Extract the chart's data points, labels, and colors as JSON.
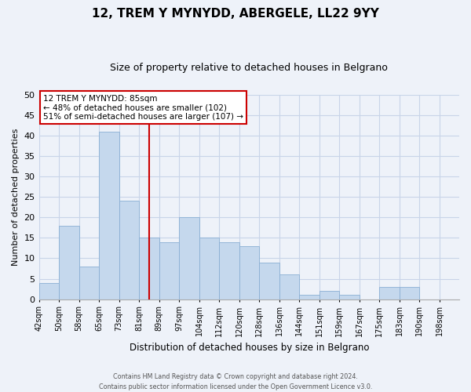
{
  "title": "12, TREM Y MYNYDD, ABERGELE, LL22 9YY",
  "subtitle": "Size of property relative to detached houses in Belgrano",
  "xlabel": "Distribution of detached houses by size in Belgrano",
  "ylabel": "Number of detached properties",
  "bin_labels": [
    "42sqm",
    "50sqm",
    "58sqm",
    "65sqm",
    "73sqm",
    "81sqm",
    "89sqm",
    "97sqm",
    "104sqm",
    "112sqm",
    "120sqm",
    "128sqm",
    "136sqm",
    "144sqm",
    "151sqm",
    "159sqm",
    "167sqm",
    "175sqm",
    "183sqm",
    "190sqm",
    "198sqm"
  ],
  "bar_values": [
    4,
    18,
    8,
    41,
    24,
    15,
    14,
    20,
    15,
    14,
    13,
    9,
    6,
    1,
    2,
    1,
    0,
    3,
    3,
    0,
    0
  ],
  "bar_color": "#c5d8ed",
  "bar_edge_color": "#8aafd4",
  "highlight_line_color": "#cc0000",
  "annotation_title": "12 TREM Y MYNYDD: 85sqm",
  "annotation_line1": "← 48% of detached houses are smaller (102)",
  "annotation_line2": "51% of semi-detached houses are larger (107) →",
  "annotation_box_color": "#ffffff",
  "annotation_box_edge": "#cc0000",
  "ylim": [
    0,
    50
  ],
  "yticks": [
    0,
    5,
    10,
    15,
    20,
    25,
    30,
    35,
    40,
    45,
    50
  ],
  "grid_color": "#c8d4e8",
  "footer_line1": "Contains HM Land Registry data © Crown copyright and database right 2024.",
  "footer_line2": "Contains public sector information licensed under the Open Government Licence v3.0.",
  "bg_color": "#eef2f9",
  "title_fontsize": 11,
  "subtitle_fontsize": 9
}
